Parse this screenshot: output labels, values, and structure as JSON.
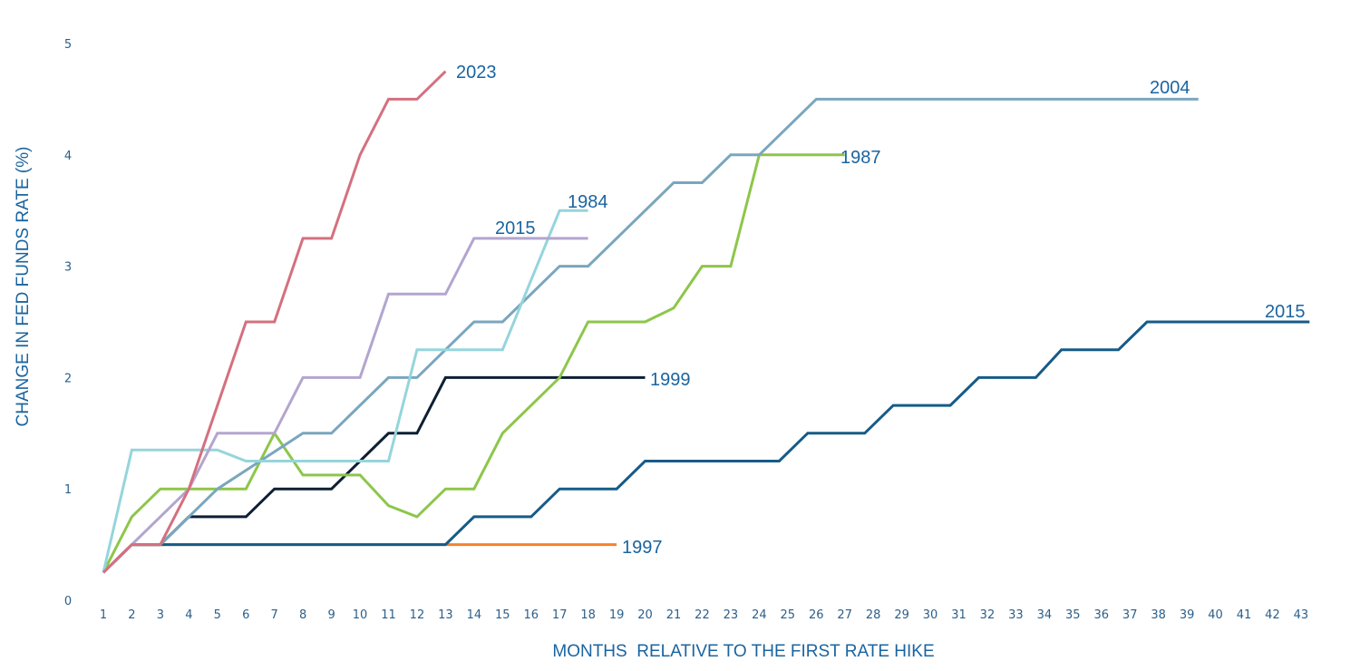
{
  "chart_data": {
    "type": "line",
    "title": "",
    "xlabel": "MONTHS  RELATIVE TO THE FIRST RATE HIKE",
    "ylabel": "CHANGE IN FED FUNDS RATE (%)",
    "xlim": [
      1,
      43
    ],
    "ylim": [
      0,
      5
    ],
    "x_ticks": [
      "1",
      "2",
      "3",
      "4",
      "5",
      "6",
      "7",
      "8",
      "9",
      "10",
      "11",
      "12",
      "13",
      "14",
      "15",
      "16",
      "17",
      "18",
      "19",
      "20",
      "21",
      "22",
      "23",
      "24",
      "25",
      "26",
      "27",
      "28",
      "29",
      "30",
      "31",
      "32",
      "33",
      "34",
      "35",
      "36",
      "37",
      "38",
      "39",
      "40",
      "41",
      "42",
      "43"
    ],
    "y_ticks": [
      "0",
      "1",
      "2",
      "3",
      "4",
      "5"
    ],
    "grid": false,
    "legend": "direct labels at line ends",
    "label_color": "#1a64a0",
    "series": [
      {
        "name": "1997",
        "color": "#f5822a",
        "points": [
          [
            1,
            0.25
          ],
          [
            2,
            0.5
          ],
          [
            19,
            0.5
          ]
        ]
      },
      {
        "name": "2015",
        "color": "#165b87",
        "points": [
          [
            1,
            0.25
          ],
          [
            2,
            0.5
          ],
          [
            13,
            0.5
          ],
          [
            14,
            0.75
          ],
          [
            16,
            0.75
          ],
          [
            17,
            1.0
          ],
          [
            19,
            1.0
          ],
          [
            20,
            1.25
          ],
          [
            24.7,
            1.25
          ],
          [
            25.7,
            1.5
          ],
          [
            27.7,
            1.5
          ],
          [
            28.7,
            1.75
          ],
          [
            30.7,
            1.75
          ],
          [
            31.7,
            2.0
          ],
          [
            33.7,
            2.0
          ],
          [
            34.6,
            2.25
          ],
          [
            36.6,
            2.25
          ],
          [
            37.6,
            2.5
          ],
          [
            43.3,
            2.5
          ]
        ]
      },
      {
        "name": "1999",
        "color": "#0d1f33",
        "points": [
          [
            1,
            0.25
          ],
          [
            2,
            0.5
          ],
          [
            3,
            0.5
          ],
          [
            4,
            0.75
          ],
          [
            6,
            0.75
          ],
          [
            7,
            1.0
          ],
          [
            9,
            1.0
          ],
          [
            10,
            1.25
          ],
          [
            11,
            1.5
          ],
          [
            12,
            1.5
          ],
          [
            13,
            2.0
          ],
          [
            20,
            2.0
          ]
        ]
      },
      {
        "name": "1987",
        "color": "#8dc64a",
        "points": [
          [
            1,
            0.25
          ],
          [
            2,
            0.75
          ],
          [
            3,
            1.0
          ],
          [
            6,
            1.0
          ],
          [
            7,
            1.5
          ],
          [
            8,
            1.125
          ],
          [
            10,
            1.125
          ],
          [
            11,
            0.85
          ],
          [
            12,
            0.75
          ],
          [
            13,
            1.0
          ],
          [
            14,
            1.0
          ],
          [
            15,
            1.5
          ],
          [
            16,
            1.75
          ],
          [
            17,
            2.0
          ],
          [
            18,
            2.5
          ],
          [
            20,
            2.5
          ],
          [
            21,
            2.625
          ],
          [
            22,
            3.0
          ],
          [
            23,
            3.0
          ],
          [
            24,
            4.0
          ],
          [
            27,
            4.0
          ]
        ]
      },
      {
        "name": "2004",
        "color": "#7aa6bf",
        "points": [
          [
            1,
            0.25
          ],
          [
            2,
            0.5
          ],
          [
            3,
            0.5
          ],
          [
            4,
            0.75
          ],
          [
            5,
            1.0
          ],
          [
            8,
            1.5
          ],
          [
            9,
            1.5
          ],
          [
            11,
            2.0
          ],
          [
            12,
            2.0
          ],
          [
            14,
            2.5
          ],
          [
            15,
            2.5
          ],
          [
            17,
            3.0
          ],
          [
            18,
            3.0
          ],
          [
            21,
            3.75
          ],
          [
            22,
            3.75
          ],
          [
            23,
            4.0
          ],
          [
            24,
            4.0
          ],
          [
            26,
            4.5
          ],
          [
            39.4,
            4.5
          ]
        ]
      },
      {
        "name": "1984",
        "color": "#95d5dc",
        "points": [
          [
            1,
            0.25
          ],
          [
            2,
            1.35
          ],
          [
            5,
            1.35
          ],
          [
            6,
            1.25
          ],
          [
            11,
            1.25
          ],
          [
            12,
            2.25
          ],
          [
            15,
            2.25
          ],
          [
            17,
            3.5
          ],
          [
            18,
            3.5
          ]
        ]
      },
      {
        "name": "2015",
        "color": "#b3a5cf",
        "points": [
          [
            1,
            0.25
          ],
          [
            2,
            0.5
          ],
          [
            4,
            1.0
          ],
          [
            5,
            1.5
          ],
          [
            7,
            1.5
          ],
          [
            8,
            2.0
          ],
          [
            10,
            2.0
          ],
          [
            11,
            2.75
          ],
          [
            13,
            2.75
          ],
          [
            14,
            3.25
          ],
          [
            18,
            3.25
          ]
        ]
      },
      {
        "name": "2023",
        "color": "#d4707f",
        "points": [
          [
            1,
            0.25
          ],
          [
            2,
            0.5
          ],
          [
            3,
            0.5
          ],
          [
            4,
            1.0
          ],
          [
            5,
            1.75
          ],
          [
            6,
            2.5
          ],
          [
            7,
            2.5
          ],
          [
            8,
            3.25
          ],
          [
            9,
            3.25
          ],
          [
            10,
            4.0
          ],
          [
            11,
            4.5
          ],
          [
            12,
            4.5
          ],
          [
            13,
            4.75
          ]
        ]
      }
    ]
  }
}
